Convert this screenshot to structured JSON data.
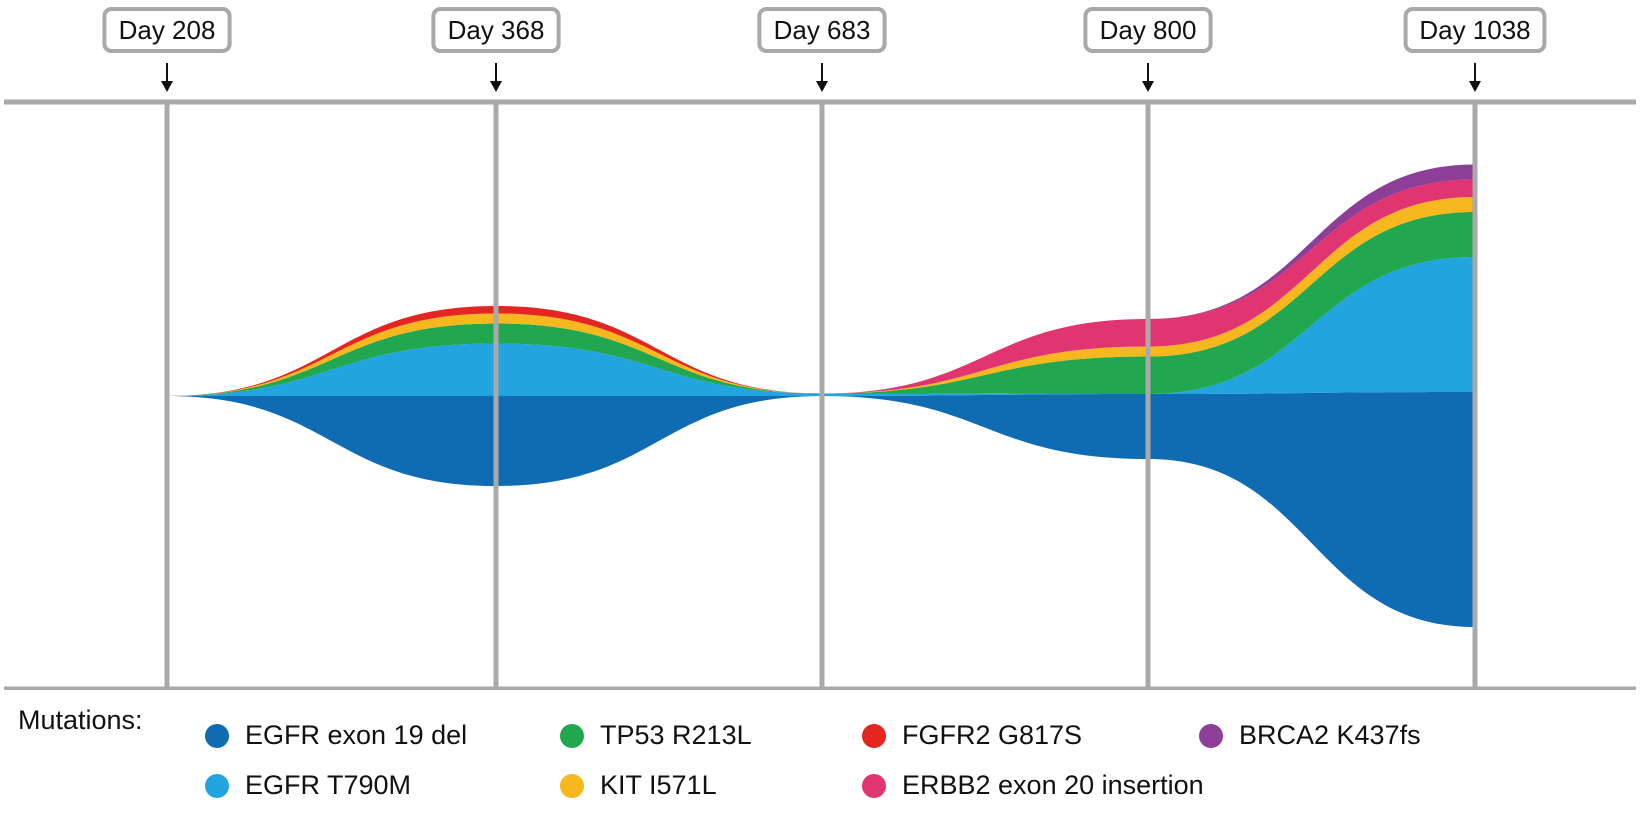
{
  "chart_data": {
    "type": "area",
    "title": "",
    "x": [
      208,
      368,
      683,
      800,
      1038
    ],
    "tick_labels": [
      "Day 208",
      "Day 368",
      "Day 683",
      "Day 800",
      "Day 1038"
    ],
    "note_lower_stream": "EGFR exon 19 del is drawn below the baseline; all other mutations are stacked above it",
    "series": [
      {
        "name": "EGFR exon 19 del",
        "color": "#0F6BB2",
        "values": [
          0,
          18,
          0,
          13,
          47
        ]
      },
      {
        "name": "EGFR T790M",
        "color": "#22A4DE",
        "values": [
          0,
          10.5,
          0.5,
          0,
          27
        ]
      },
      {
        "name": "TP53 R213L",
        "color": "#21A750",
        "values": [
          0,
          4,
          0,
          7.5,
          9
        ]
      },
      {
        "name": "KIT I571L",
        "color": "#F6B71F",
        "values": [
          0,
          2,
          0,
          2,
          3
        ]
      },
      {
        "name": "FGFR2 G817S",
        "color": "#E52620",
        "values": [
          0,
          1.5,
          0,
          0,
          0
        ]
      },
      {
        "name": "ERBB2 exon 20 insertion",
        "color": "#E03570",
        "values": [
          0,
          0,
          0,
          5.5,
          3.5
        ]
      },
      {
        "name": "BRCA2 K437fs",
        "color": "#8D3F98",
        "values": [
          0,
          0,
          0,
          0,
          3
        ]
      }
    ],
    "grid": true,
    "legend_position": "bottom"
  },
  "legend": {
    "title": "Mutations:",
    "layout": [
      0,
      2,
      4,
      6,
      1,
      3,
      5
    ]
  }
}
